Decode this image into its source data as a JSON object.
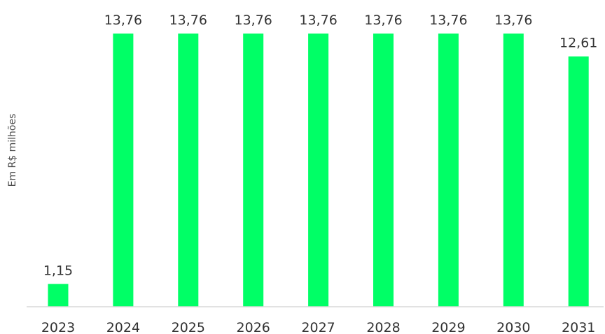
{
  "chart_data": {
    "type": "bar",
    "title": "",
    "xlabel": "",
    "ylabel": "Em R$ milhões",
    "categories": [
      "2023",
      "2024",
      "2025",
      "2026",
      "2027",
      "2028",
      "2029",
      "2030",
      "2031"
    ],
    "values": [
      1.15,
      13.76,
      13.76,
      13.76,
      13.76,
      13.76,
      13.76,
      13.76,
      12.61
    ],
    "value_labels": [
      "1,15",
      "13,76",
      "13,76",
      "13,76",
      "13,76",
      "13,76",
      "13,76",
      "13,76",
      "12,61"
    ],
    "ylim": [
      0,
      13.76
    ],
    "grid": false,
    "legend": "none",
    "colors": {
      "bar": "#00FF66",
      "axis_line": "#D9D9D9",
      "text": "#333333"
    }
  }
}
